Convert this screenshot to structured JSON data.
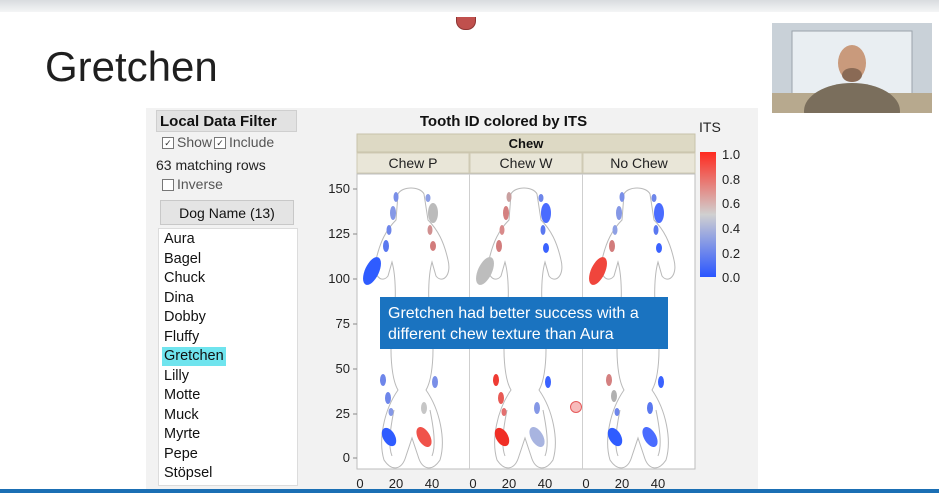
{
  "slide": {
    "title": "Gretchen"
  },
  "filter": {
    "title": "Local Data Filter",
    "show_label": "Show",
    "include_label": "Include",
    "matching_rows": "63 matching rows",
    "inverse_label": "Inverse",
    "column_button": "Dog Name (13)",
    "dogs": [
      "Aura",
      "Bagel",
      "Chuck",
      "Dina",
      "Dobby",
      "Fluffy",
      "Gretchen",
      "Lilly",
      "Motte",
      "Muck",
      "Myrte",
      "Pepe",
      "Stöpsel"
    ],
    "selected": "Gretchen"
  },
  "chart": {
    "title": "Tooth ID colored by ITS",
    "group_header": "Chew",
    "panels": [
      "Chew P",
      "Chew W",
      "No Chew"
    ],
    "y_ticks": [
      "150",
      "125",
      "100",
      "75",
      "50",
      "25",
      "0"
    ],
    "x_ticks": [
      "0",
      "20",
      "40"
    ],
    "legend": {
      "title": "ITS",
      "ticks": [
        "1.0",
        "0.8",
        "0.6",
        "0.4",
        "0.2",
        "0.0"
      ],
      "high_color": "#ff2a1f",
      "mid_color": "#d0d0d0",
      "low_color": "#2a55ff"
    }
  },
  "callout": {
    "text": "Gretchen had better success with a different chew texture than Aura"
  },
  "colors": {
    "selection_highlight": "#6fe4ee",
    "callout_bg": "#1a73c0",
    "header_bg": "#ddd9c4"
  }
}
